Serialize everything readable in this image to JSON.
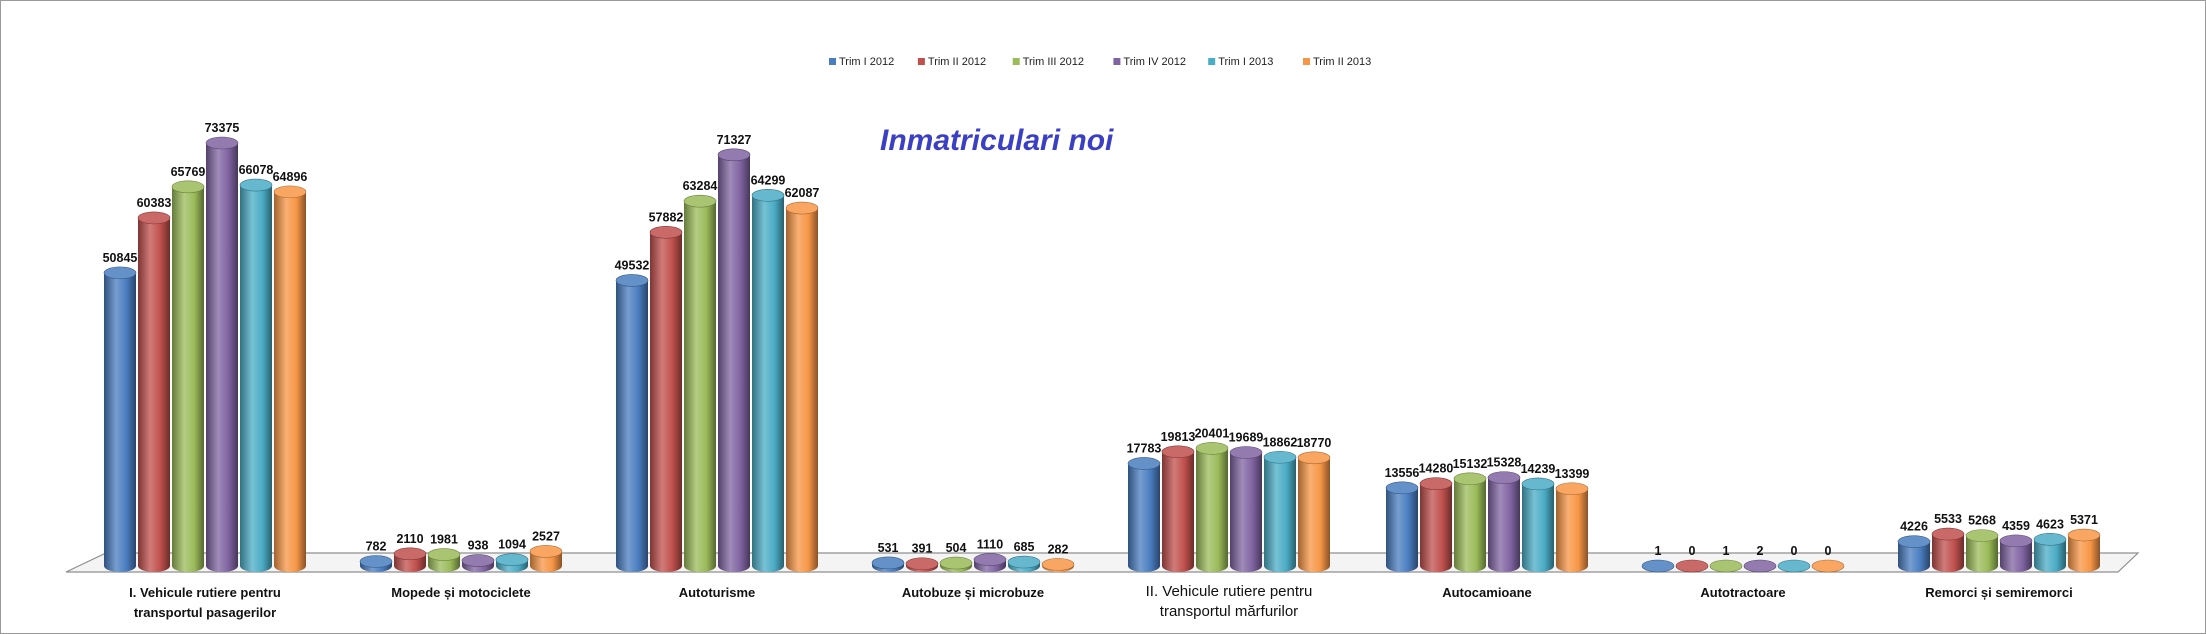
{
  "chart_data": {
    "type": "bar",
    "title": "Inmatriculari noi",
    "categories": [
      [
        "I. Vehicule   rutiere pentru",
        "transportul  pasagerilor"
      ],
      [
        "Mopede și motociclete"
      ],
      [
        "Autoturisme"
      ],
      [
        "Autobuze și microbuze"
      ],
      [
        "II. Vehicule rutiere pentru",
        "transportul mărfurilor"
      ],
      [
        "Autocamioane"
      ],
      [
        "Autotractoare"
      ],
      [
        "Remorci și semiremorci"
      ]
    ],
    "series": [
      {
        "name": "Trim I 2012",
        "color": "#4a7dc0",
        "values": [
          50845,
          782,
          49532,
          531,
          17783,
          13556,
          1,
          4226
        ]
      },
      {
        "name": "Trim II 2012",
        "color": "#c0504d",
        "values": [
          60383,
          2110,
          57882,
          391,
          19813,
          14280,
          0,
          5533
        ]
      },
      {
        "name": "Trim III 2012",
        "color": "#9bbb59",
        "values": [
          65769,
          1981,
          63284,
          504,
          20401,
          15132,
          1,
          5268
        ]
      },
      {
        "name": "Trim IV 2012",
        "color": "#8064a2",
        "values": [
          73375,
          938,
          71327,
          1110,
          19689,
          15328,
          2,
          4359
        ]
      },
      {
        "name": "Trim  I 2013",
        "color": "#4bacc6",
        "values": [
          66078,
          1094,
          64299,
          685,
          18862,
          14239,
          0,
          4623
        ]
      },
      {
        "name": "Trim II 2013",
        "color": "#f79646",
        "values": [
          64896,
          2527,
          62087,
          282,
          18770,
          13399,
          0,
          5371
        ]
      }
    ],
    "xlabel": "",
    "ylabel": "",
    "ylim": [
      0,
      80000
    ],
    "legend": "top-center",
    "grid": false
  }
}
